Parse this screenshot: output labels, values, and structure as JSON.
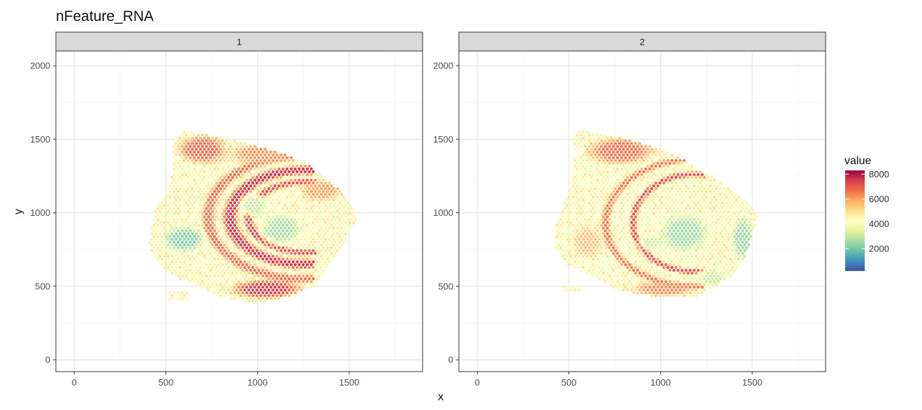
{
  "chart_data": {
    "type": "scatter",
    "title": "nFeature_RNA",
    "xlabel": "x",
    "ylabel": "y",
    "xlim": [
      -100,
      1900
    ],
    "ylim": [
      -80,
      2100
    ],
    "x_ticks": [
      0,
      500,
      1000,
      1500
    ],
    "y_ticks": [
      0,
      500,
      1000,
      1500,
      2000
    ],
    "grid": true,
    "legend": {
      "title": "value",
      "position": "right",
      "type": "colorbar",
      "range": [
        200,
        8300
      ],
      "ticks": [
        2000,
        4000,
        6000,
        8000
      ],
      "palette": [
        "#3e53a4",
        "#3f8fbf",
        "#66c2a5",
        "#abdda4",
        "#e6f598",
        "#ffffbf",
        "#fee08b",
        "#fdae61",
        "#f46d43",
        "#d53e4f",
        "#9e0142"
      ]
    },
    "panels": [
      {
        "label": "1",
        "shape_outline": [
          [
            610,
            1560
          ],
          [
            850,
            1500
          ],
          [
            1030,
            1440
          ],
          [
            1150,
            1400
          ],
          [
            1280,
            1320
          ],
          [
            1400,
            1200
          ],
          [
            1470,
            1130
          ],
          [
            1540,
            1000
          ],
          [
            1550,
            950
          ],
          [
            1500,
            880
          ],
          [
            1460,
            750
          ],
          [
            1380,
            620
          ],
          [
            1300,
            500
          ],
          [
            1200,
            440
          ],
          [
            1080,
            400
          ],
          [
            960,
            390
          ],
          [
            860,
            410
          ],
          [
            760,
            450
          ],
          [
            680,
            500
          ],
          [
            600,
            540
          ],
          [
            560,
            560
          ],
          [
            480,
            620
          ],
          [
            420,
            720
          ],
          [
            410,
            800
          ],
          [
            420,
            900
          ],
          [
            440,
            1000
          ],
          [
            480,
            1100
          ],
          [
            520,
            1180
          ],
          [
            540,
            1300
          ],
          [
            540,
            1500
          ]
        ],
        "patch": [
          [
            520,
            400
          ],
          [
            620,
            400
          ],
          [
            620,
            460
          ],
          [
            520,
            460
          ]
        ],
        "features": [
          {
            "kind": "arc",
            "cx": 1250,
            "cy": 970,
            "rx": 400,
            "ry": 320,
            "band": 45,
            "value": 7600
          },
          {
            "kind": "arc",
            "cx": 1260,
            "cy": 970,
            "rx": 310,
            "ry": 240,
            "band": 30,
            "value": 7200
          },
          {
            "kind": "arc",
            "cx": 1250,
            "cy": 970,
            "rx": 520,
            "ry": 420,
            "band": 40,
            "value": 6700
          },
          {
            "kind": "blob",
            "cx": 1130,
            "cy": 890,
            "rx": 130,
            "ry": 130,
            "value": 2600
          },
          {
            "kind": "blob",
            "cx": 980,
            "cy": 1050,
            "rx": 90,
            "ry": 90,
            "value": 3000
          },
          {
            "kind": "blob",
            "cx": 600,
            "cy": 820,
            "rx": 140,
            "ry": 110,
            "value": 2200
          },
          {
            "kind": "blob",
            "cx": 700,
            "cy": 1430,
            "rx": 170,
            "ry": 120,
            "value": 6800
          },
          {
            "kind": "blob",
            "cx": 1030,
            "cy": 1400,
            "rx": 240,
            "ry": 90,
            "value": 6200
          },
          {
            "kind": "blob",
            "cx": 1050,
            "cy": 480,
            "rx": 240,
            "ry": 80,
            "value": 7400
          },
          {
            "kind": "blob",
            "cx": 1350,
            "cy": 1150,
            "rx": 150,
            "ry": 90,
            "value": 6000
          }
        ]
      },
      {
        "label": "2",
        "shape_outline": [
          [
            550,
            1560
          ],
          [
            700,
            1530
          ],
          [
            850,
            1490
          ],
          [
            980,
            1440
          ],
          [
            1100,
            1380
          ],
          [
            1200,
            1300
          ],
          [
            1300,
            1230
          ],
          [
            1420,
            1130
          ],
          [
            1500,
            1050
          ],
          [
            1540,
            980
          ],
          [
            1500,
            880
          ],
          [
            1480,
            780
          ],
          [
            1460,
            690
          ],
          [
            1420,
            600
          ],
          [
            1320,
            520
          ],
          [
            1200,
            430
          ],
          [
            1100,
            420
          ],
          [
            980,
            430
          ],
          [
            860,
            450
          ],
          [
            780,
            470
          ],
          [
            700,
            520
          ],
          [
            620,
            570
          ],
          [
            560,
            600
          ],
          [
            480,
            650
          ],
          [
            430,
            760
          ],
          [
            430,
            900
          ],
          [
            460,
            1020
          ],
          [
            500,
            1150
          ],
          [
            520,
            1280
          ],
          [
            540,
            1400
          ],
          [
            520,
            1500
          ]
        ],
        "patch": [
          [
            460,
            470
          ],
          [
            560,
            470
          ],
          [
            560,
            510
          ],
          [
            460,
            510
          ]
        ],
        "features": [
          {
            "kind": "arc",
            "cx": 1180,
            "cy": 930,
            "rx": 330,
            "ry": 330,
            "band": 28,
            "value": 7200
          },
          {
            "kind": "arc",
            "cx": 1180,
            "cy": 930,
            "rx": 480,
            "ry": 430,
            "band": 30,
            "value": 6600
          },
          {
            "kind": "blob",
            "cx": 1130,
            "cy": 860,
            "rx": 160,
            "ry": 170,
            "value": 2500
          },
          {
            "kind": "blob",
            "cx": 950,
            "cy": 800,
            "rx": 80,
            "ry": 60,
            "value": 3200
          },
          {
            "kind": "blob",
            "cx": 780,
            "cy": 1420,
            "rx": 230,
            "ry": 110,
            "value": 6700
          },
          {
            "kind": "blob",
            "cx": 1450,
            "cy": 820,
            "rx": 80,
            "ry": 200,
            "value": 2500
          },
          {
            "kind": "blob",
            "cx": 1280,
            "cy": 560,
            "rx": 110,
            "ry": 70,
            "value": 3100
          },
          {
            "kind": "blob",
            "cx": 1020,
            "cy": 480,
            "rx": 220,
            "ry": 60,
            "value": 6300
          },
          {
            "kind": "blob",
            "cx": 600,
            "cy": 800,
            "rx": 110,
            "ry": 140,
            "value": 5500
          }
        ]
      }
    ]
  }
}
